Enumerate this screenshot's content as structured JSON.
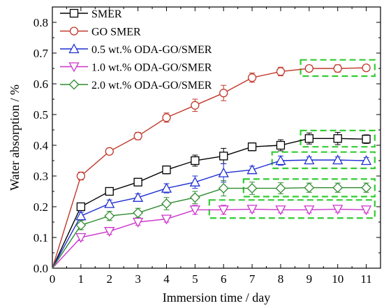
{
  "chart_data": {
    "type": "line",
    "title": "",
    "xlabel": "Immersion time / day",
    "ylabel": "Water absorption / %",
    "xlim": [
      0,
      11.5
    ],
    "ylim": [
      0,
      0.85
    ],
    "x_ticks": [
      "0",
      "1",
      "2",
      "3",
      "4",
      "5",
      "6",
      "7",
      "8",
      "9",
      "10",
      "11"
    ],
    "y_ticks": [
      "0.0",
      "0.1",
      "0.2",
      "0.3",
      "0.4",
      "0.5",
      "0.6",
      "0.7",
      "0.8"
    ],
    "grid": false,
    "legend_position": "top-left",
    "x": [
      0,
      1,
      2,
      3,
      4,
      5,
      6,
      7,
      8,
      9,
      10,
      11
    ],
    "series": [
      {
        "name": "SMER",
        "color": "#000000",
        "marker": "square",
        "values": [
          0,
          0.2,
          0.25,
          0.28,
          0.32,
          0.35,
          0.365,
          0.395,
          0.4,
          0.422,
          0.422,
          0.42
        ],
        "errors": [
          0,
          0.012,
          0.008,
          0.012,
          0.013,
          0.018,
          0.025,
          0.013,
          0.018,
          0.018,
          0.02,
          0.014
        ]
      },
      {
        "name": "GO SMER",
        "color": "#c0392b",
        "marker": "circle",
        "values": [
          0,
          0.3,
          0.38,
          0.43,
          0.49,
          0.53,
          0.57,
          0.62,
          0.64,
          0.65,
          0.65,
          0.652
        ],
        "errors": [
          0,
          0.013,
          0.01,
          0.012,
          0.015,
          0.02,
          0.025,
          0.015,
          0.014,
          0.01,
          0.012,
          0.01
        ]
      },
      {
        "name": "0.5 wt.% ODA-GO/SMER",
        "color": "#1f2fd1",
        "marker": "triangle",
        "values": [
          0,
          0.17,
          0.21,
          0.23,
          0.26,
          0.28,
          0.31,
          0.32,
          0.35,
          0.352,
          0.352,
          0.35
        ],
        "errors": [
          0,
          0.012,
          0.012,
          0.012,
          0.015,
          0.02,
          0.03,
          0.012,
          0.015,
          0.01,
          0.01,
          0.01
        ]
      },
      {
        "name": "1.0 wt.% ODA-GO/SMER",
        "color": "#cc33cc",
        "marker": "triangle-down",
        "values": [
          0,
          0.1,
          0.12,
          0.15,
          0.16,
          0.19,
          0.19,
          0.192,
          0.19,
          0.19,
          0.192,
          0.19
        ],
        "errors": [
          0,
          0.01,
          0.01,
          0.01,
          0.01,
          0.015,
          0.015,
          0.01,
          0.01,
          0.01,
          0.01,
          0.01
        ]
      },
      {
        "name": "2.0 wt.% ODA-GO/SMER",
        "color": "#2e8b2e",
        "marker": "diamond",
        "values": [
          0,
          0.14,
          0.17,
          0.18,
          0.21,
          0.23,
          0.26,
          0.26,
          0.26,
          0.262,
          0.262,
          0.262
        ],
        "errors": [
          0,
          0.015,
          0.015,
          0.015,
          0.02,
          0.02,
          0.025,
          0.02,
          0.018,
          0.015,
          0.015,
          0.015
        ]
      }
    ],
    "highlight_boxes": {
      "color": "#33cc33",
      "boxes": [
        {
          "x_range": [
            8.7,
            11.3
          ],
          "y_range": [
            0.625,
            0.678
          ]
        },
        {
          "x_range": [
            8.7,
            11.3
          ],
          "y_range": [
            0.395,
            0.448
          ]
        },
        {
          "x_range": [
            7.7,
            11.3
          ],
          "y_range": [
            0.325,
            0.378
          ]
        },
        {
          "x_range": [
            6.7,
            11.3
          ],
          "y_range": [
            0.233,
            0.29
          ]
        },
        {
          "x_range": [
            5.5,
            11.3
          ],
          "y_range": [
            0.163,
            0.222
          ]
        }
      ]
    }
  }
}
